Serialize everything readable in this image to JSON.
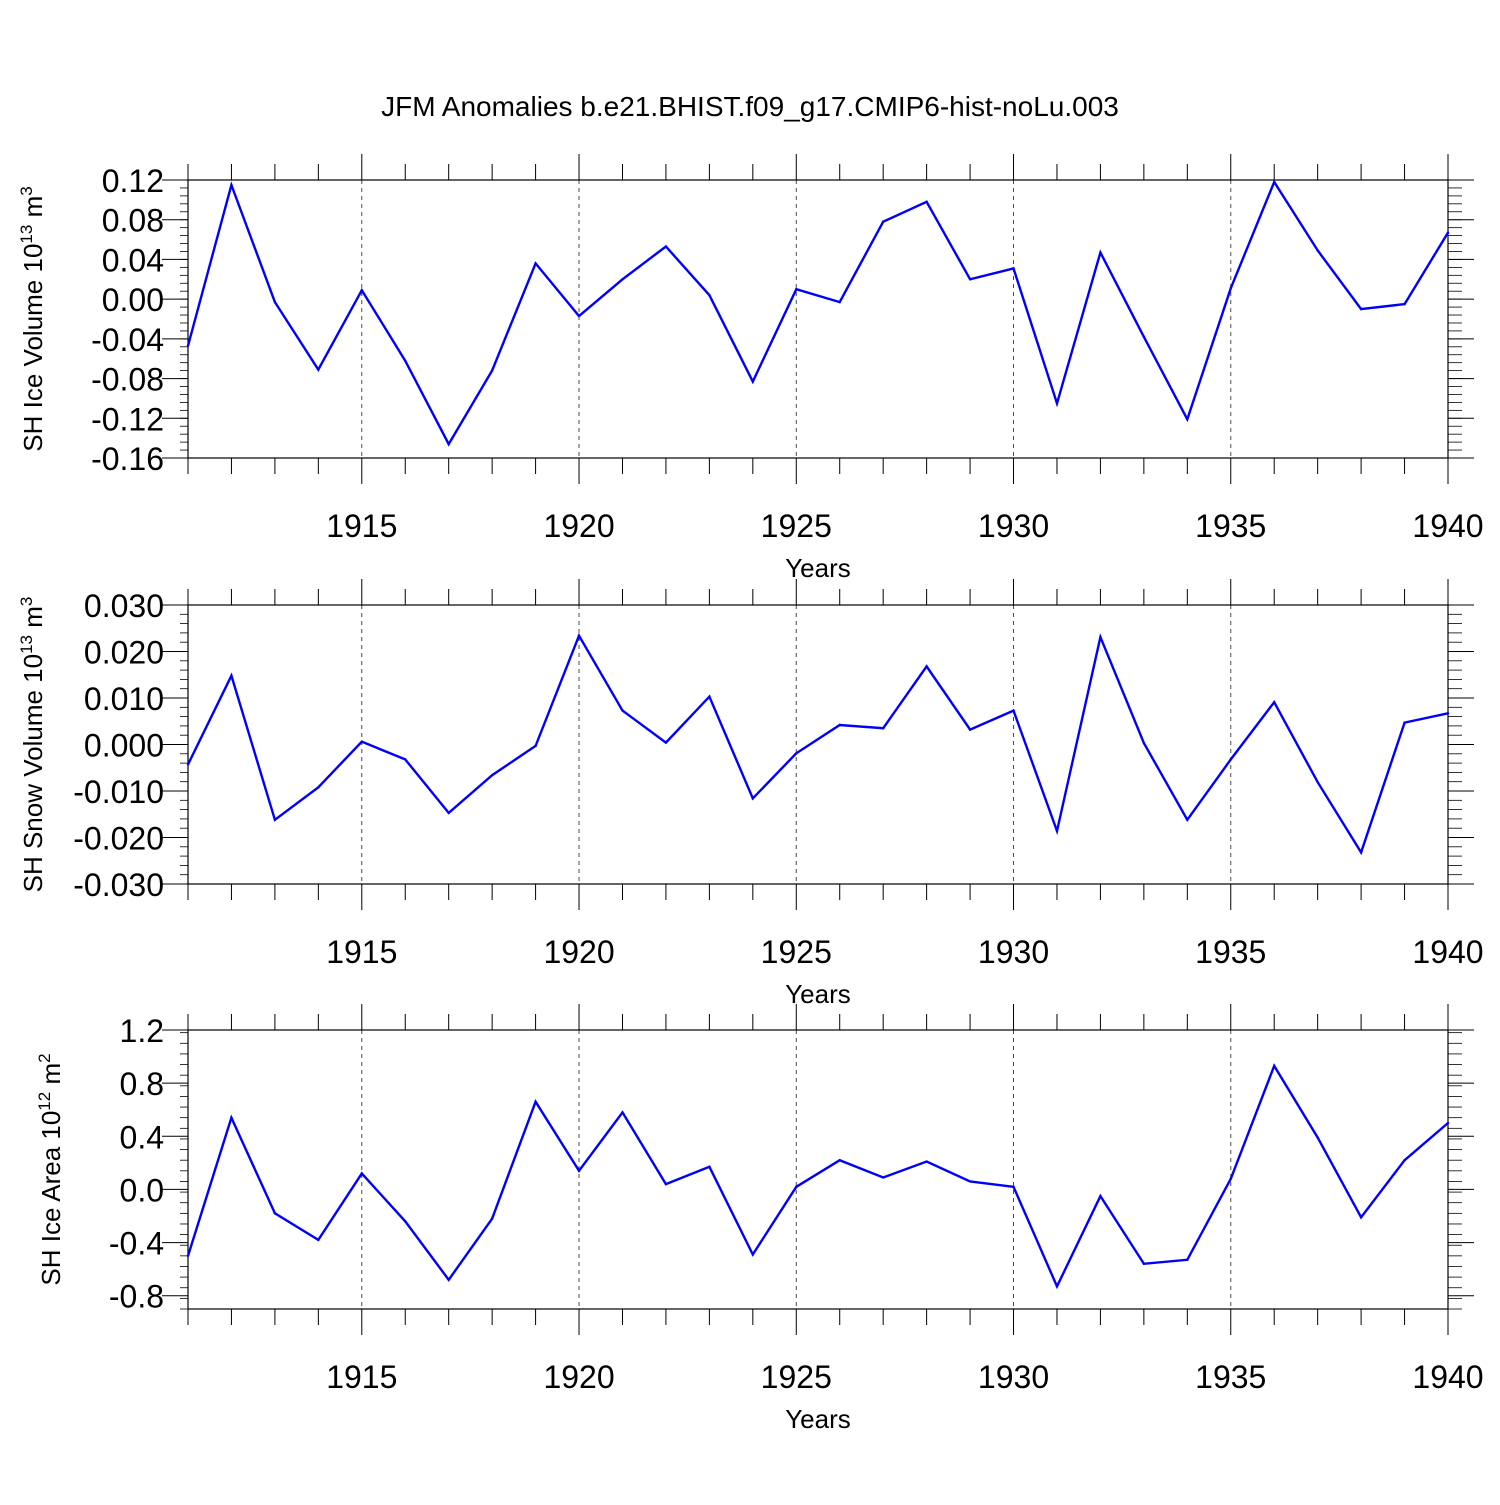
{
  "title": "JFM Anomalies b.e21.BHIST.f09_g17.CMIP6-hist-noLu.003",
  "colors": {
    "line": "#0000ff",
    "axis": "#000000",
    "grid": "#000000"
  },
  "chart_data": [
    {
      "type": "line",
      "ylabel_main": "SH Ice Volume 10",
      "ylabel_exp": "13",
      "ylabel_unit": " m",
      "ylabel_unit_exp": "3",
      "xlabel": "Years",
      "xlim": [
        1911,
        1940
      ],
      "ylim": [
        -0.16,
        0.12
      ],
      "yticks": [
        -0.16,
        -0.12,
        -0.08,
        -0.04,
        0.0,
        0.04,
        0.08,
        0.12
      ],
      "ytick_labels": [
        "-0.16",
        "-0.12",
        "-0.08",
        "-0.04",
        "0.00",
        "0.04",
        "0.08",
        "0.12"
      ],
      "xticks": [
        1915,
        1920,
        1925,
        1930,
        1935,
        1940
      ],
      "xtick_labels": [
        "1915",
        "1920",
        "1925",
        "1930",
        "1935",
        "1940"
      ],
      "grid": "vertical dashed at major x ticks",
      "x": [
        1911,
        1912,
        1913,
        1914,
        1915,
        1916,
        1917,
        1918,
        1919,
        1920,
        1921,
        1922,
        1923,
        1924,
        1925,
        1926,
        1927,
        1928,
        1929,
        1930,
        1931,
        1932,
        1933,
        1934,
        1935,
        1936,
        1937,
        1938,
        1939,
        1940
      ],
      "values": [
        -0.047,
        0.115,
        -0.003,
        -0.071,
        0.009,
        -0.062,
        -0.146,
        -0.072,
        0.036,
        -0.017,
        0.02,
        0.053,
        0.004,
        -0.083,
        0.01,
        -0.003,
        0.078,
        0.098,
        0.02,
        0.031,
        -0.105,
        0.047,
        -0.038,
        -0.121,
        0.011,
        0.118,
        0.049,
        -0.01,
        -0.005,
        0.067
      ]
    },
    {
      "type": "line",
      "ylabel_main": "SH Snow Volume 10",
      "ylabel_exp": "13",
      "ylabel_unit": " m",
      "ylabel_unit_exp": "3",
      "xlabel": "Years",
      "xlim": [
        1911,
        1940
      ],
      "ylim": [
        -0.03,
        0.03
      ],
      "yticks": [
        -0.03,
        -0.02,
        -0.01,
        0.0,
        0.01,
        0.02,
        0.03
      ],
      "ytick_labels": [
        "-0.030",
        "-0.020",
        "-0.010",
        "0.000",
        "0.010",
        "0.020",
        "0.030"
      ],
      "xticks": [
        1915,
        1920,
        1925,
        1930,
        1935,
        1940
      ],
      "xtick_labels": [
        "1915",
        "1920",
        "1925",
        "1930",
        "1935",
        "1940"
      ],
      "grid": "vertical dashed at major x ticks",
      "x": [
        1911,
        1912,
        1913,
        1914,
        1915,
        1916,
        1917,
        1918,
        1919,
        1920,
        1921,
        1922,
        1923,
        1924,
        1925,
        1926,
        1927,
        1928,
        1929,
        1930,
        1931,
        1932,
        1933,
        1934,
        1935,
        1936,
        1937,
        1938,
        1939,
        1940
      ],
      "values": [
        -0.0043,
        0.0148,
        -0.0162,
        -0.0092,
        0.0006,
        -0.0032,
        -0.0147,
        -0.0066,
        -0.0003,
        0.0234,
        0.0073,
        0.0004,
        0.0103,
        -0.0116,
        -0.0019,
        0.0042,
        0.0035,
        0.0168,
        0.0032,
        0.0073,
        -0.0186,
        0.0231,
        0.0003,
        -0.0162,
        -0.0032,
        0.0091,
        -0.0081,
        -0.0232,
        0.0047,
        0.0067
      ]
    },
    {
      "type": "line",
      "ylabel_main": "SH Ice Area 10",
      "ylabel_exp": "12",
      "ylabel_unit": " m",
      "ylabel_unit_exp": "2",
      "xlabel": "Years",
      "xlim": [
        1911,
        1940
      ],
      "ylim": [
        -0.9,
        1.2
      ],
      "yticks": [
        -0.8,
        -0.4,
        0.0,
        0.4,
        0.8,
        1.2
      ],
      "ytick_labels": [
        "-0.8",
        "-0.4",
        "0.0",
        "0.4",
        "0.8",
        "1.2"
      ],
      "xticks": [
        1915,
        1920,
        1925,
        1930,
        1935,
        1940
      ],
      "xtick_labels": [
        "1915",
        "1920",
        "1925",
        "1930",
        "1935",
        "1940"
      ],
      "grid": "vertical dashed at major x ticks",
      "x": [
        1911,
        1912,
        1913,
        1914,
        1915,
        1916,
        1917,
        1918,
        1919,
        1920,
        1921,
        1922,
        1923,
        1924,
        1925,
        1926,
        1927,
        1928,
        1929,
        1930,
        1931,
        1932,
        1933,
        1934,
        1935,
        1936,
        1937,
        1938,
        1939,
        1940
      ],
      "values": [
        -0.5,
        0.54,
        -0.18,
        -0.38,
        0.12,
        -0.24,
        -0.68,
        -0.22,
        0.66,
        0.14,
        0.58,
        0.04,
        0.17,
        -0.49,
        0.02,
        0.22,
        0.09,
        0.21,
        0.06,
        0.02,
        -0.73,
        -0.05,
        -0.56,
        -0.53,
        0.08,
        0.93,
        0.39,
        -0.21,
        0.22,
        0.5
      ]
    }
  ]
}
